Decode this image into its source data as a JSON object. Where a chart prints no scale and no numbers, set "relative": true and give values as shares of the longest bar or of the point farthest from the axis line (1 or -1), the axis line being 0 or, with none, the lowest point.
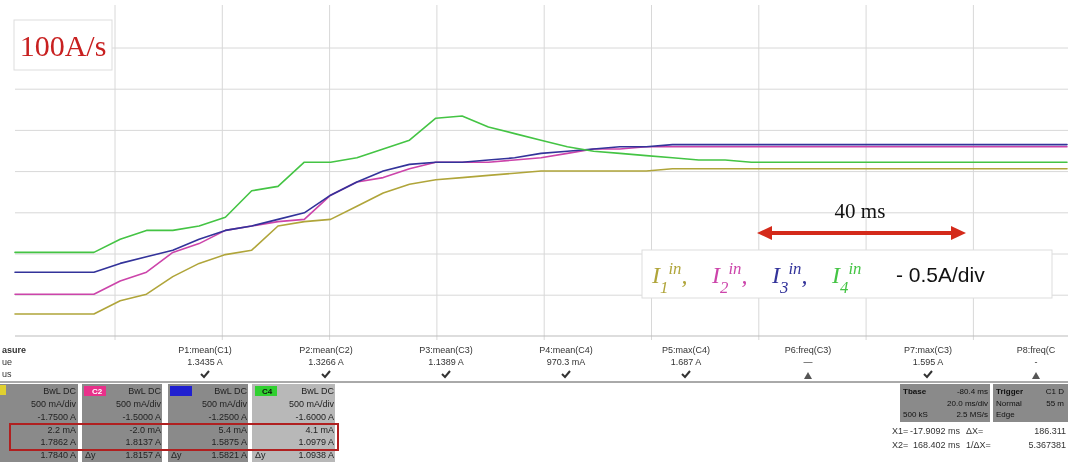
{
  "chart_data": {
    "type": "line",
    "title": "100A/s",
    "relative": true,
    "grid": true,
    "legend": "bottom right",
    "line_style": "solid",
    "categories": [
      null,
      null,
      null,
      null,
      null,
      null,
      null,
      null,
      null,
      null,
      null,
      null,
      null,
      null,
      null,
      null,
      null,
      null,
      null,
      null,
      null,
      null,
      null,
      null,
      null,
      null,
      null,
      null,
      null,
      null,
      null,
      null,
      null,
      null,
      null,
      null,
      null,
      null,
      null,
      null,
      null
    ],
    "series": [
      {
        "name": "I$_{1}$$^{in}$,",
        "color": "#b0a53a",
        "values": [
          0.1,
          0.1,
          0.1,
          0.1,
          0.16,
          0.19,
          0.27,
          0.33,
          0.37,
          0.39,
          0.5,
          0.52,
          0.53,
          0.59,
          0.65,
          0.69,
          0.71,
          0.72,
          0.73,
          0.74,
          0.75,
          0.75,
          0.75,
          0.75,
          0.75,
          0.76,
          0.76,
          0.76,
          0.76,
          0.76,
          0.76,
          0.76,
          0.76,
          0.76,
          0.76,
          0.76,
          0.76,
          0.76,
          0.76,
          0.76,
          0.76
        ]
      },
      {
        "name": "I$_{2}$$^{in}$,",
        "color": "#cc44aa",
        "values": [
          0.19,
          0.19,
          0.19,
          0.19,
          0.25,
          0.29,
          0.38,
          0.42,
          0.48,
          0.5,
          0.52,
          0.53,
          0.64,
          0.7,
          0.72,
          0.76,
          0.79,
          0.79,
          0.79,
          0.8,
          0.81,
          0.83,
          0.85,
          0.85,
          0.86,
          0.86,
          0.86,
          0.86,
          0.86,
          0.86,
          0.86,
          0.86,
          0.86,
          0.86,
          0.86,
          0.86,
          0.86,
          0.86,
          0.86,
          0.86,
          0.86
        ]
      },
      {
        "name": "I$_{3}$$^{in}$,",
        "color": "#33339a",
        "values": [
          0.29,
          0.29,
          0.29,
          0.29,
          0.33,
          0.36,
          0.39,
          0.44,
          0.48,
          0.5,
          0.53,
          0.56,
          0.64,
          0.7,
          0.75,
          0.78,
          0.79,
          0.79,
          0.8,
          0.81,
          0.83,
          0.84,
          0.85,
          0.86,
          0.86,
          0.87,
          0.87,
          0.87,
          0.87,
          0.87,
          0.87,
          0.87,
          0.87,
          0.87,
          0.87,
          0.87,
          0.87,
          0.87,
          0.87,
          0.87,
          0.87
        ]
      },
      {
        "name": "I$_{4}$$^{in}$",
        "color": "#44c444",
        "values": [
          0.38,
          0.38,
          0.38,
          0.38,
          0.44,
          0.48,
          0.48,
          0.5,
          0.54,
          0.66,
          0.68,
          0.79,
          0.79,
          0.81,
          0.85,
          0.89,
          0.99,
          1.0,
          0.95,
          0.92,
          0.89,
          0.86,
          0.84,
          0.83,
          0.82,
          0.81,
          0.8,
          0.8,
          0.79,
          0.79,
          0.79,
          0.79,
          0.79,
          0.79,
          0.79,
          0.79,
          0.79,
          0.79,
          0.79,
          0.79,
          0.79
        ]
      }
    ],
    "annotations": [
      "40 ms",
      "- 0.5A/div",
      "asure",
      "ue",
      "us",
      "P1:mean(C1)",
      "P2:mean(C2)",
      "P3:mean(C3)",
      "P4:mean(C4)",
      "P5:max(C4)",
      "P6:freq(C3)",
      "P7:max(C3)",
      "P8:freq(C",
      "1.3435 A",
      "1.3266 A",
      "1.1389 A",
      "970.3 mA",
      "1.687 A",
      "—",
      "1.595 A",
      "-",
      "BwL DC",
      "500 mA/div",
      "-1.7500 A",
      "2.2 mA",
      "1.7862 A",
      "1.7840 A",
      "C2",
      "BwL DC",
      "500 mA/div",
      "-1.5000 A",
      "-2.0 mA",
      "1.8137 A",
      "Δy",
      "1.8157 A",
      "BwL DC",
      "500 mA/div",
      "-1.2500 A",
      "5.4 mA",
      "1.5875 A",
      "Δy",
      "1.5821 A",
      "C4",
      "BwL DC",
      "500 mA/div",
      "-1.6000 A",
      "4.1 mA",
      "1.0979 A",
      "Δy",
      "1.0938 A",
      "Tbase",
      "-80.4 ms",
      "20.0 ms/div",
      "500 kS",
      "2.5 MS/s",
      "Trigger",
      "C1 D",
      "Normal",
      "55 m",
      "Edge",
      "X1=",
      "-17.9092 ms",
      "ΔX=",
      "186.311",
      "X2=",
      "168.402 ms",
      "1/ΔX=",
      "5.367381"
    ]
  }
}
